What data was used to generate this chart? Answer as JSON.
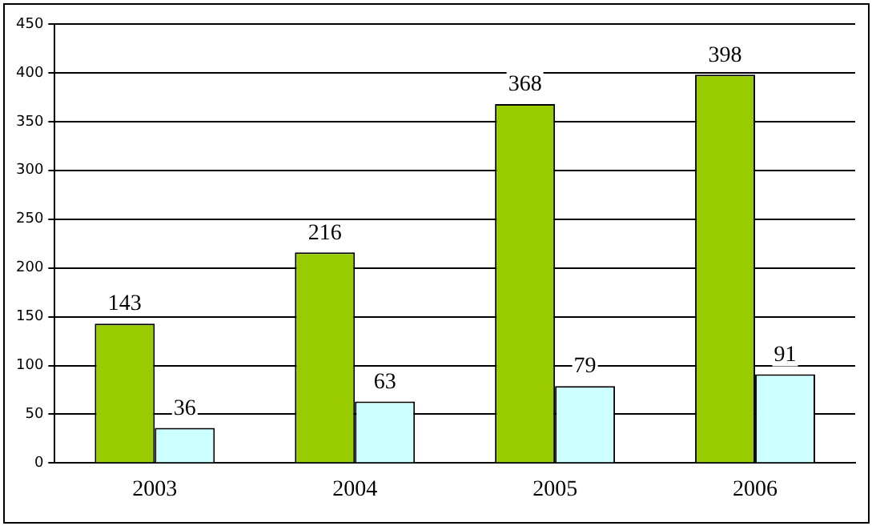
{
  "chart_data": {
    "type": "bar",
    "categories": [
      "2003",
      "2004",
      "2005",
      "2006"
    ],
    "series": [
      {
        "color": "#99cc00",
        "values": [
          143,
          216,
          368,
          398
        ]
      },
      {
        "color": "#ccffff",
        "values": [
          36,
          63,
          79,
          91
        ]
      }
    ],
    "ylim": [
      0,
      450
    ],
    "yticks": [
      0,
      50,
      100,
      150,
      200,
      250,
      300,
      350,
      400,
      450
    ],
    "grid": "y",
    "legend": false,
    "data_labels": true
  }
}
